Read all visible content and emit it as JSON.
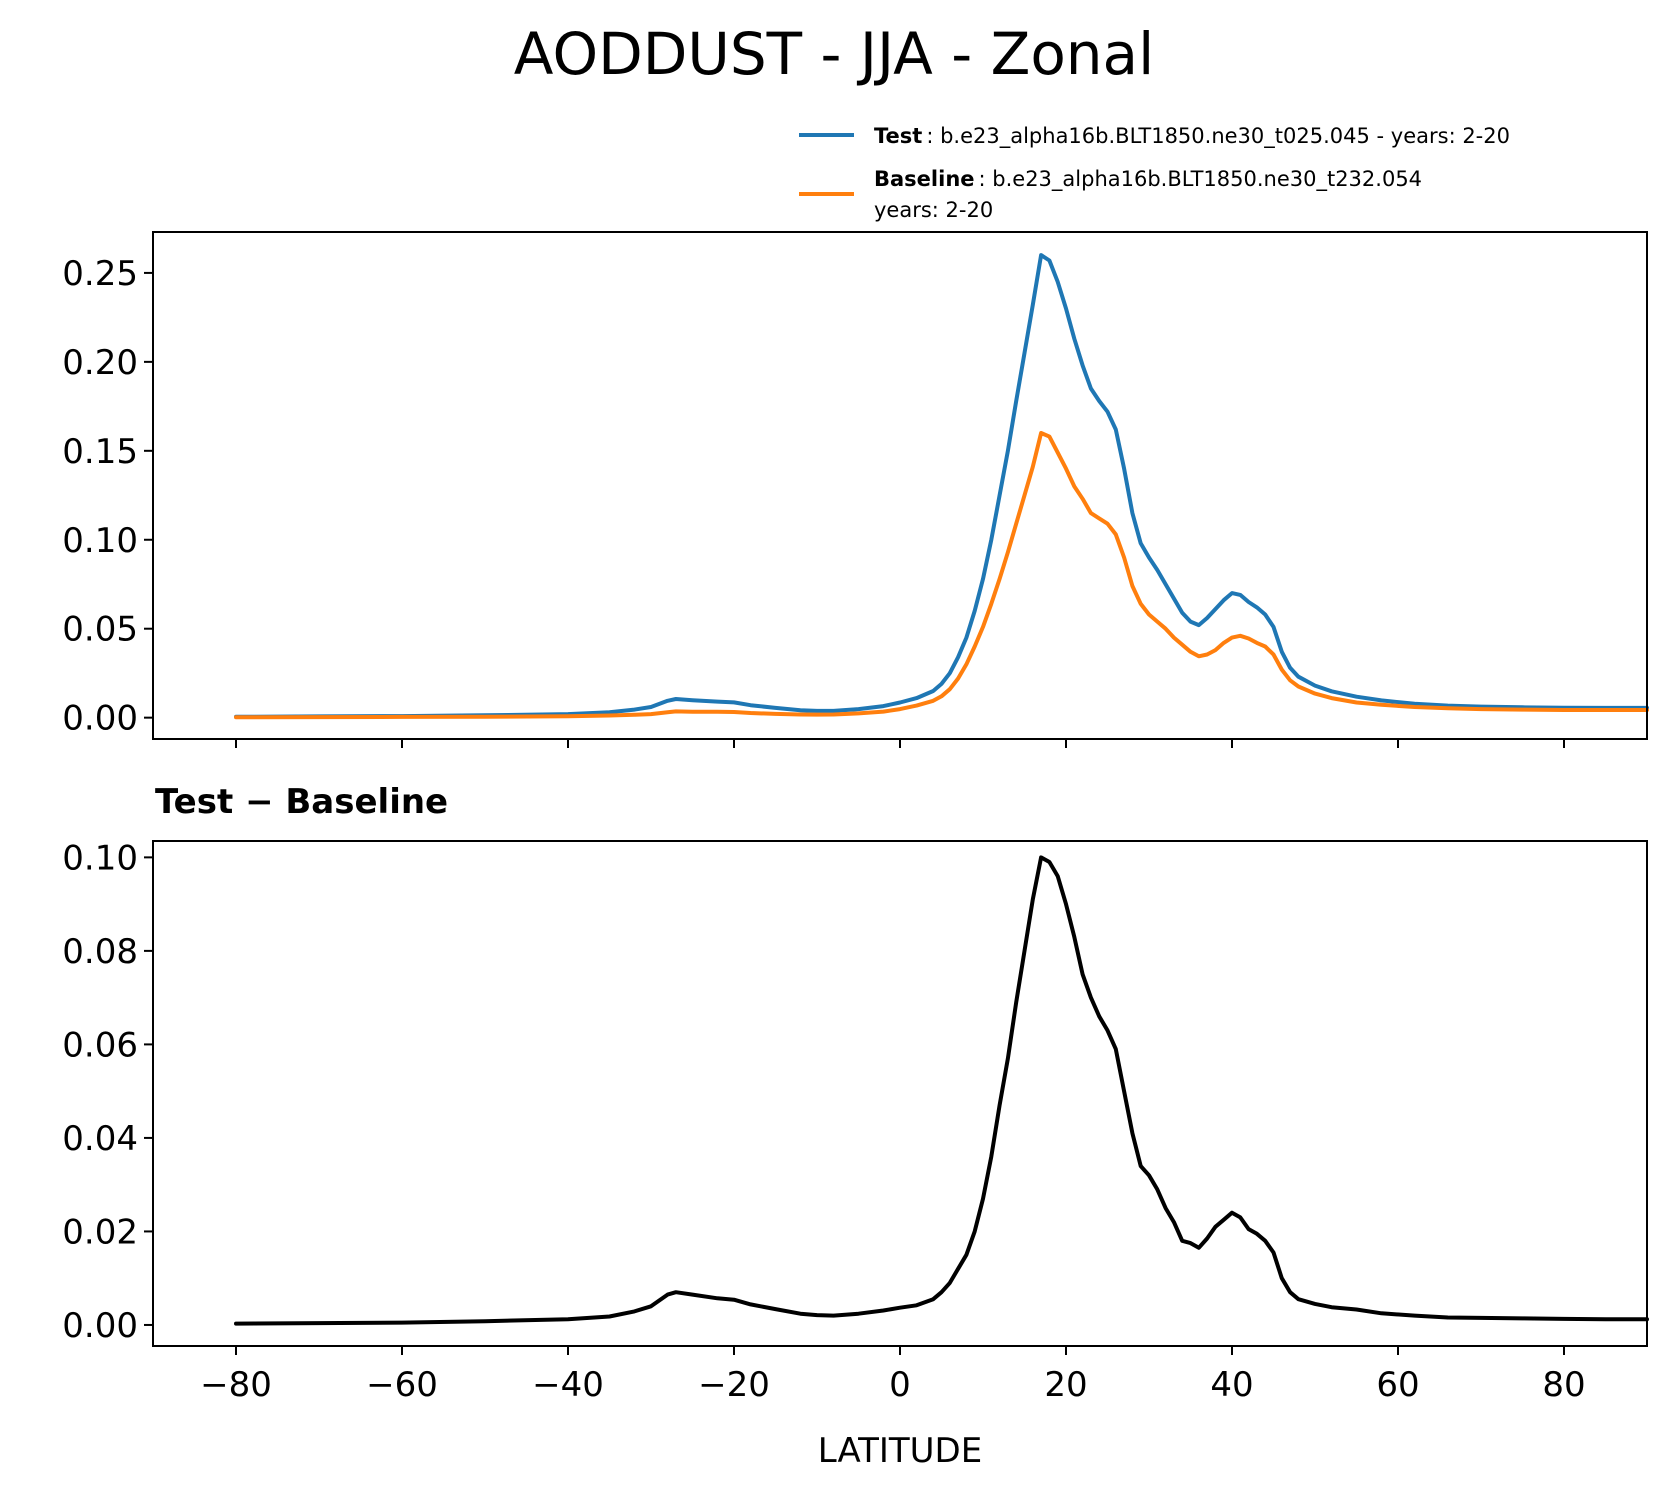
{
  "chart_data": [
    {
      "type": "line",
      "title": "AODDUST - JJA - Zonal",
      "xlabel": "",
      "ylabel": "",
      "xlim": [
        -90,
        90
      ],
      "ylim": [
        -0.012,
        0.273
      ],
      "yticks": [
        "0.00",
        "0.05",
        "0.10",
        "0.15",
        "0.20",
        "0.25"
      ],
      "ytick_values": [
        0,
        0.05,
        0.1,
        0.15,
        0.2,
        0.25
      ],
      "xtick_values": [
        -80,
        -60,
        -40,
        -20,
        0,
        20,
        40,
        60,
        80
      ],
      "grid": false,
      "legend": {
        "position": "above-right",
        "entries": [
          {
            "bold": "Test",
            "text": ": b.e23_alpha16b.BLT1850.ne30_t025.045 - years: 2-20",
            "text2": "",
            "color": "#1f77b4"
          },
          {
            "bold": "Baseline",
            "text": ": b.e23_alpha16b.BLT1850.ne30_t232.054",
            "text2": "years: 2-20",
            "color": "#ff7f0e"
          }
        ]
      },
      "series": [
        {
          "name": "Test",
          "color": "#1f77b4",
          "x": [
            -80,
            -70,
            -60,
            -50,
            -40,
            -35,
            -32,
            -30,
            -28,
            -27,
            -25,
            -22,
            -20,
            -18,
            -15,
            -12,
            -10,
            -8,
            -5,
            -2,
            0,
            2,
            4,
            5,
            6,
            7,
            8,
            9,
            10,
            11,
            12,
            13,
            14,
            15,
            16,
            17,
            18,
            19,
            20,
            21,
            22,
            23,
            24,
            25,
            26,
            27,
            28,
            29,
            30,
            31,
            32,
            33,
            34,
            35,
            36,
            37,
            38,
            39,
            40,
            41,
            42,
            43,
            44,
            45,
            46,
            47,
            48,
            50,
            52,
            55,
            58,
            62,
            66,
            70,
            75,
            80,
            85,
            90
          ],
          "values": [
            0.0005,
            0.0007,
            0.0009,
            0.0013,
            0.002,
            0.003,
            0.0045,
            0.006,
            0.0095,
            0.0105,
            0.0098,
            0.009,
            0.0086,
            0.007,
            0.0055,
            0.0042,
            0.0038,
            0.0038,
            0.0048,
            0.0065,
            0.0085,
            0.011,
            0.015,
            0.019,
            0.025,
            0.034,
            0.045,
            0.06,
            0.078,
            0.1,
            0.125,
            0.15,
            0.178,
            0.205,
            0.232,
            0.26,
            0.257,
            0.245,
            0.23,
            0.213,
            0.198,
            0.185,
            0.178,
            0.172,
            0.162,
            0.14,
            0.115,
            0.098,
            0.09,
            0.083,
            0.075,
            0.067,
            0.059,
            0.054,
            0.052,
            0.056,
            0.061,
            0.066,
            0.07,
            0.069,
            0.065,
            0.062,
            0.058,
            0.051,
            0.037,
            0.028,
            0.023,
            0.018,
            0.0148,
            0.0118,
            0.0097,
            0.0078,
            0.0068,
            0.0062,
            0.0058,
            0.0056,
            0.0055,
            0.0055
          ]
        },
        {
          "name": "Baseline",
          "color": "#ff7f0e",
          "x": [
            -80,
            -70,
            -60,
            -50,
            -40,
            -35,
            -32,
            -30,
            -28,
            -27,
            -25,
            -22,
            -20,
            -18,
            -15,
            -12,
            -10,
            -8,
            -5,
            -2,
            0,
            2,
            4,
            5,
            6,
            7,
            8,
            9,
            10,
            11,
            12,
            13,
            14,
            15,
            16,
            17,
            18,
            19,
            20,
            21,
            22,
            23,
            24,
            25,
            26,
            27,
            28,
            29,
            30,
            31,
            32,
            33,
            34,
            35,
            36,
            37,
            38,
            39,
            40,
            41,
            42,
            43,
            44,
            45,
            46,
            47,
            48,
            50,
            52,
            55,
            58,
            62,
            66,
            70,
            75,
            80,
            85,
            90
          ],
          "values": [
            0.0002,
            0.0003,
            0.0004,
            0.0005,
            0.0008,
            0.0012,
            0.0016,
            0.002,
            0.003,
            0.0035,
            0.0033,
            0.0033,
            0.0032,
            0.0026,
            0.0021,
            0.0018,
            0.0017,
            0.0018,
            0.0024,
            0.0034,
            0.0048,
            0.0068,
            0.0095,
            0.012,
            0.016,
            0.022,
            0.03,
            0.04,
            0.051,
            0.064,
            0.078,
            0.093,
            0.109,
            0.125,
            0.141,
            0.16,
            0.158,
            0.149,
            0.14,
            0.13,
            0.123,
            0.115,
            0.112,
            0.109,
            0.103,
            0.09,
            0.074,
            0.064,
            0.058,
            0.054,
            0.05,
            0.045,
            0.041,
            0.037,
            0.0345,
            0.0355,
            0.038,
            0.042,
            0.045,
            0.046,
            0.0445,
            0.042,
            0.04,
            0.0355,
            0.027,
            0.021,
            0.0175,
            0.0135,
            0.011,
            0.0085,
            0.0072,
            0.006,
            0.0053,
            0.0048,
            0.0045,
            0.0043,
            0.0043,
            0.0043
          ]
        }
      ]
    },
    {
      "type": "line",
      "title": "Test − Baseline",
      "xlabel": "LATITUDE",
      "ylabel": "",
      "xlim": [
        -90,
        90
      ],
      "ylim": [
        -0.0045,
        0.1035
      ],
      "yticks": [
        "0.00",
        "0.02",
        "0.04",
        "0.06",
        "0.08",
        "0.10"
      ],
      "ytick_values": [
        0,
        0.02,
        0.04,
        0.06,
        0.08,
        0.1
      ],
      "xticks": [
        "−80",
        "−60",
        "−40",
        "−20",
        "0",
        "20",
        "40",
        "60",
        "80"
      ],
      "xtick_values": [
        -80,
        -60,
        -40,
        -20,
        0,
        20,
        40,
        60,
        80
      ],
      "grid": false,
      "series": [
        {
          "color": "#000000",
          "x": [
            -80,
            -70,
            -60,
            -50,
            -40,
            -35,
            -32,
            -30,
            -28,
            -27,
            -25,
            -22,
            -20,
            -18,
            -15,
            -12,
            -10,
            -8,
            -5,
            -2,
            0,
            2,
            4,
            5,
            6,
            7,
            8,
            9,
            10,
            11,
            12,
            13,
            14,
            15,
            16,
            17,
            18,
            19,
            20,
            21,
            22,
            23,
            24,
            25,
            26,
            27,
            28,
            29,
            30,
            31,
            32,
            33,
            34,
            35,
            36,
            37,
            38,
            39,
            40,
            41,
            42,
            43,
            44,
            45,
            46,
            47,
            48,
            50,
            52,
            55,
            58,
            62,
            66,
            70,
            75,
            80,
            85,
            90
          ],
          "values": [
            0.0003,
            0.0004,
            0.0005,
            0.0008,
            0.0012,
            0.0018,
            0.0029,
            0.004,
            0.0065,
            0.007,
            0.0065,
            0.0057,
            0.0054,
            0.0044,
            0.0034,
            0.0024,
            0.0021,
            0.002,
            0.0024,
            0.0031,
            0.0037,
            0.0042,
            0.0055,
            0.007,
            0.009,
            0.012,
            0.015,
            0.02,
            0.027,
            0.036,
            0.047,
            0.057,
            0.069,
            0.08,
            0.091,
            0.1,
            0.099,
            0.096,
            0.09,
            0.083,
            0.075,
            0.07,
            0.066,
            0.063,
            0.059,
            0.05,
            0.041,
            0.034,
            0.032,
            0.029,
            0.025,
            0.022,
            0.018,
            0.0175,
            0.0165,
            0.0185,
            0.021,
            0.0225,
            0.024,
            0.023,
            0.0205,
            0.0195,
            0.018,
            0.0155,
            0.01,
            0.007,
            0.0055,
            0.0045,
            0.0038,
            0.0033,
            0.0025,
            0.002,
            0.0016,
            0.0015,
            0.0014,
            0.0013,
            0.0012,
            0.0012
          ]
        }
      ]
    }
  ]
}
